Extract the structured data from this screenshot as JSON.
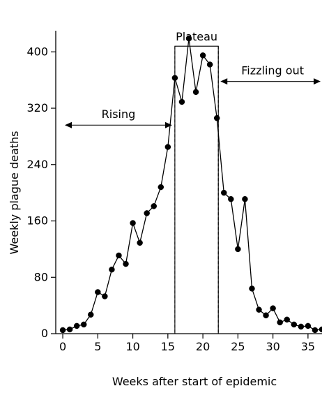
{
  "chart_data": {
    "type": "line",
    "title": "",
    "xlabel": "Weeks after start of epidemic",
    "ylabel": "Weekly plague deaths",
    "xlim": [
      -1,
      37
    ],
    "ylim": [
      0,
      430
    ],
    "x_ticks": [
      0,
      5,
      10,
      15,
      20,
      25,
      30,
      35
    ],
    "y_ticks": [
      0,
      80,
      160,
      240,
      320,
      400
    ],
    "grid": false,
    "legend": "none",
    "series": [
      {
        "x": [
          0,
          1,
          2,
          3,
          4,
          5,
          6,
          7,
          8,
          9,
          10,
          11,
          12,
          13,
          14,
          15,
          16,
          17,
          18,
          19,
          20,
          21,
          22,
          23,
          24,
          25,
          26,
          27,
          28,
          29,
          30,
          31,
          32,
          33,
          34,
          35,
          36,
          37
        ],
        "values": [
          5,
          6,
          11,
          13,
          27,
          59,
          53,
          91,
          111,
          99,
          157,
          129,
          171,
          181,
          208,
          265,
          363,
          329,
          419,
          343,
          395,
          382,
          306,
          200,
          191,
          120,
          191,
          64,
          34,
          26,
          36,
          16,
          20,
          13,
          10,
          11,
          5,
          6
        ]
      }
    ],
    "annotations": {
      "rising": {
        "label": "Rising",
        "x_start": -1,
        "x_end": 16,
        "y": 296
      },
      "plateau": {
        "label": "Plateau",
        "x_start": 16,
        "x_end": 22.2,
        "y_top": 408
      },
      "fizzling": {
        "label": "Fizzling out",
        "x_start": 22.2,
        "x_end": 37,
        "y": 358
      }
    },
    "colors": {
      "line": "#000000",
      "marker": "#000000",
      "background": "#ffffff"
    }
  }
}
